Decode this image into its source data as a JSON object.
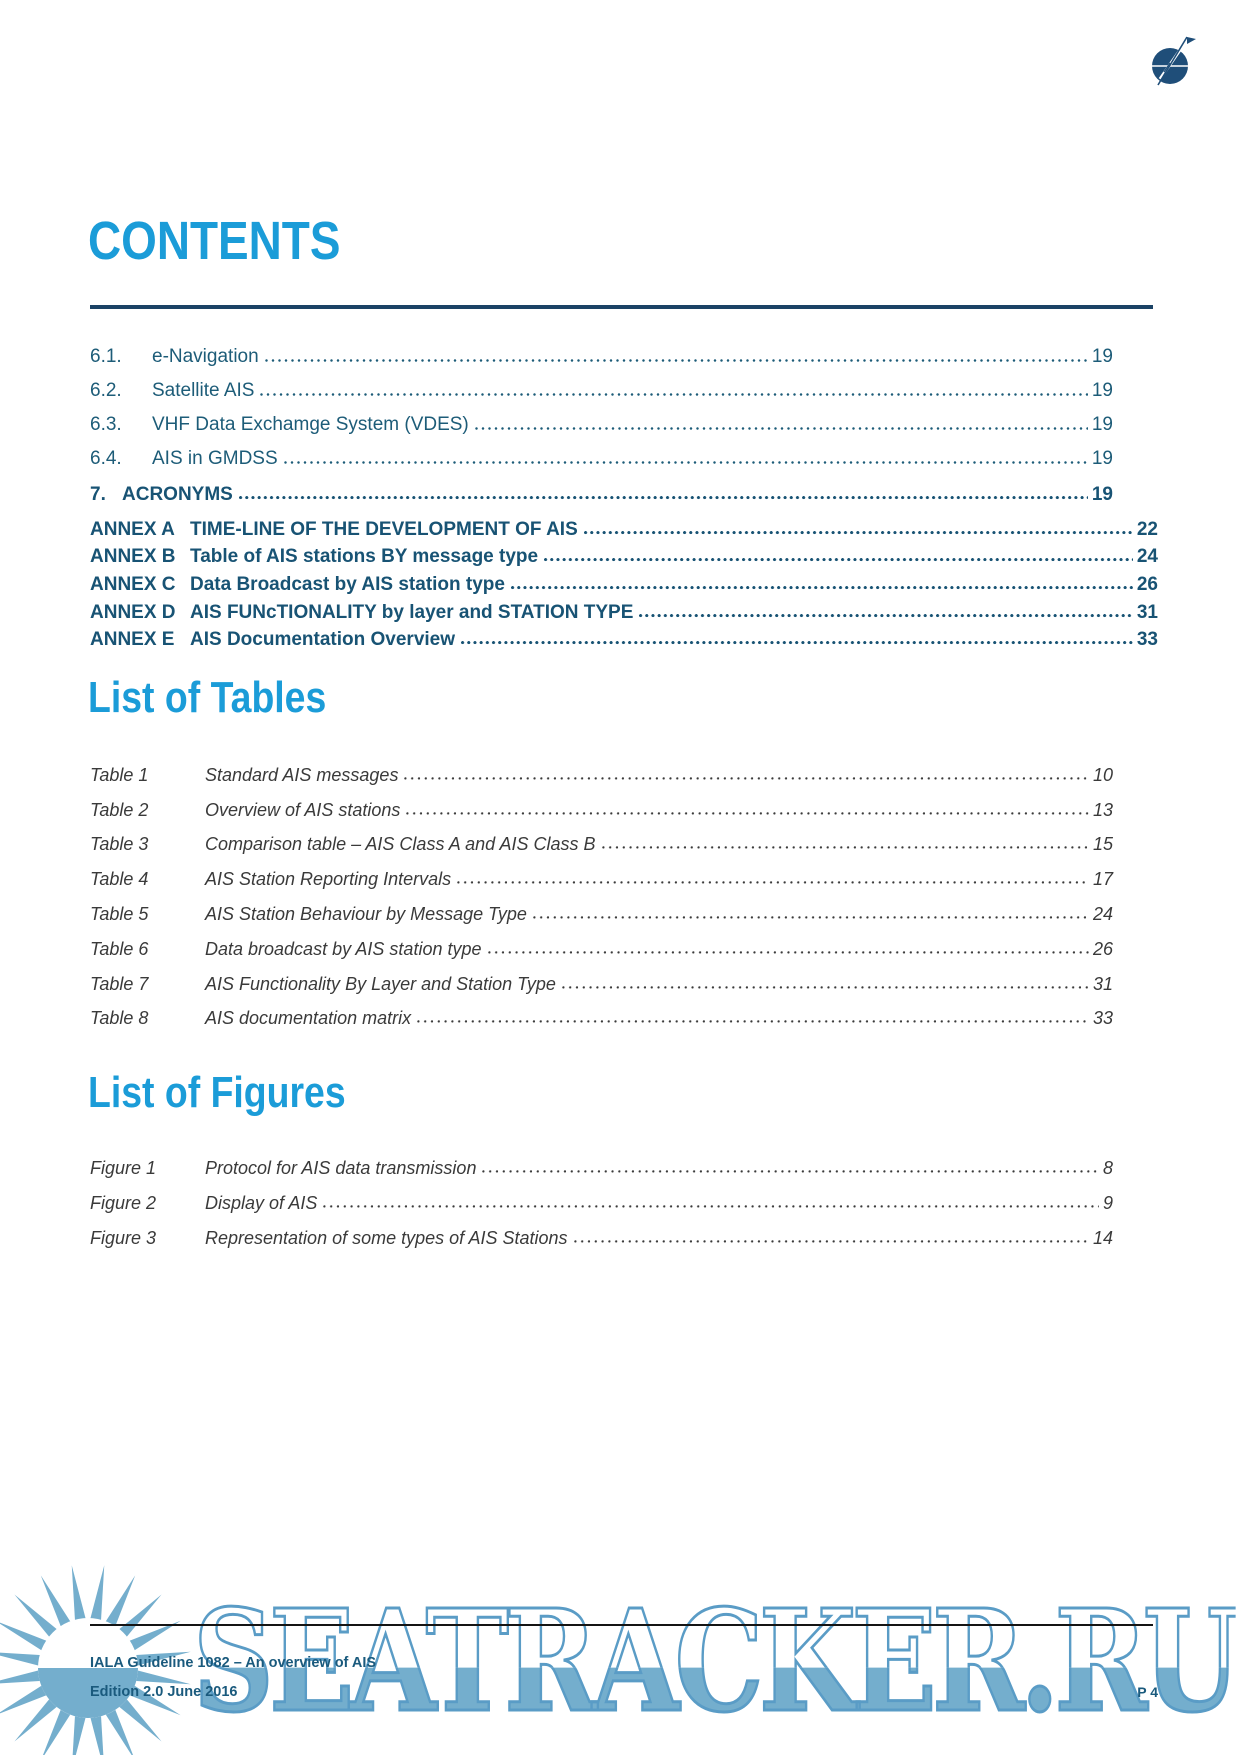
{
  "title": "CONTENTS",
  "colors": {
    "heading_blue": "#1b9cd8",
    "toc_teal": "#1d5c78",
    "title_rule_navy": "#1b4265",
    "entry_gray": "#3a3a3a",
    "footer_teal": "#1a5a7d",
    "watermark_blue": "#74aecd",
    "logo_navy": "#1f4e79"
  },
  "toc": {
    "sections": [
      {
        "number": "6.1.",
        "label": "e-Navigation",
        "page": "19"
      },
      {
        "number": "6.2.",
        "label": "Satellite AIS",
        "page": "19"
      },
      {
        "number": "6.3.",
        "label": "VHF Data Exchamge System (VDES)",
        "page": "19"
      },
      {
        "number": "6.4.",
        "label": "AIS in GMDSS",
        "page": "19"
      }
    ],
    "acronyms": {
      "number": "7.",
      "label": "ACRONYMS",
      "page": "19"
    },
    "annexes": [
      {
        "number": "ANNEX A",
        "label": "TIME-LINE OF THE DEVELOPMENT OF AIS",
        "page": "22"
      },
      {
        "number": "ANNEX B",
        "label": "Table of AIS stations BY message type",
        "page": "24"
      },
      {
        "number": "ANNEX C",
        "label": "Data Broadcast by AIS station type",
        "page": "26"
      },
      {
        "number": "ANNEX D",
        "label": "AIS FUNcTIONALITY by layer and STATION TYPE",
        "page": "31"
      },
      {
        "number": "ANNEX E",
        "label": "AIS Documentation Overview",
        "page": "33"
      }
    ]
  },
  "list_of_tables": {
    "heading": "List of Tables",
    "items": [
      {
        "number": "Table 1",
        "label": "Standard AIS messages",
        "page": "10"
      },
      {
        "number": "Table 2",
        "label": "Overview of AIS stations",
        "page": "13"
      },
      {
        "number": "Table 3",
        "label": "Comparison table – AIS Class A and AIS Class B",
        "page": "15"
      },
      {
        "number": "Table 4",
        "label": "AIS Station Reporting Intervals",
        "page": "17"
      },
      {
        "number": "Table 5",
        "label": "AIS Station Behaviour by Message Type",
        "page": "24"
      },
      {
        "number": "Table 6",
        "label": "Data broadcast by AIS station type",
        "page": "26"
      },
      {
        "number": "Table 7",
        "label": "AIS Functionality By Layer and Station Type",
        "page": "31"
      },
      {
        "number": "Table 8",
        "label": "AIS documentation matrix",
        "page": "33"
      }
    ]
  },
  "list_of_figures": {
    "heading": "List of Figures",
    "items": [
      {
        "number": "Figure 1",
        "label": "Protocol for AIS data transmission",
        "page": "8"
      },
      {
        "number": "Figure 2",
        "label": "Display of AIS",
        "page": "9"
      },
      {
        "number": "Figure 3",
        "label": "Representation of some types of AIS Stations",
        "page": "14"
      }
    ]
  },
  "footer": {
    "line1": "IALA Guideline 1082 – An overview of AIS",
    "line2": "Edition 2.0  June 2016",
    "page_label": "P 4"
  },
  "watermark": {
    "text": "SEATRACKER.RU"
  }
}
